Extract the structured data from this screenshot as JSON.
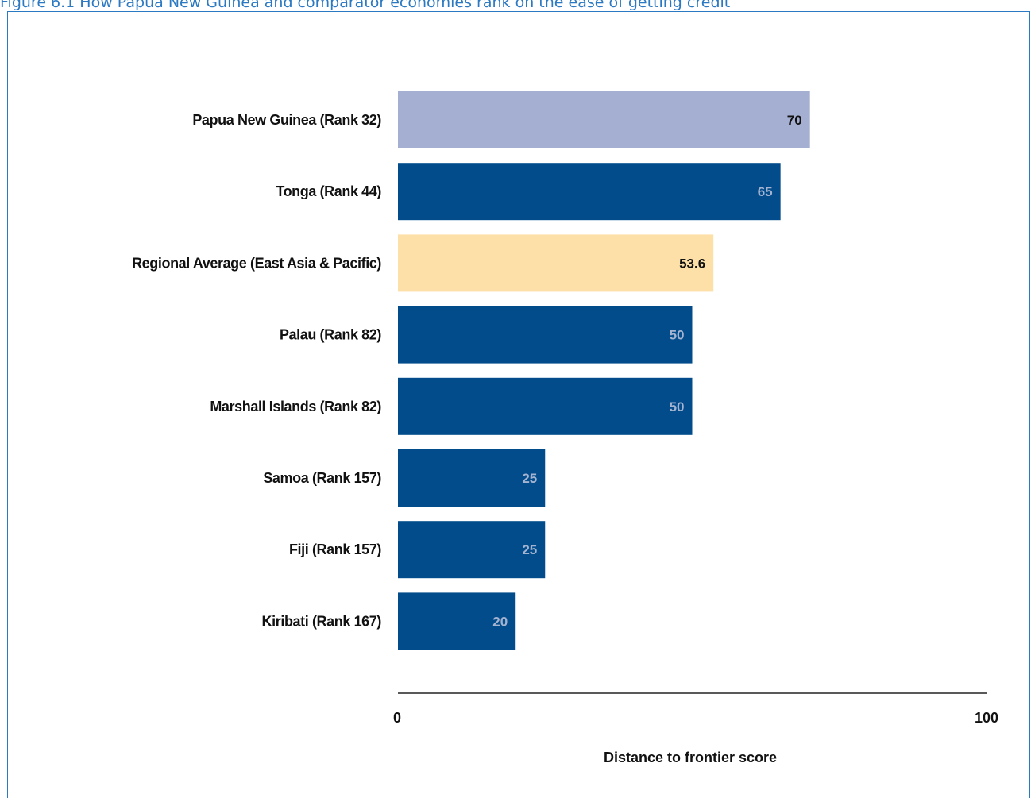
{
  "figure": {
    "title": "Figure 6.1 How Papua New Guinea and comparator economies rank on the ease of getting credit"
  },
  "colors": {
    "highlight": "#a5afd2",
    "regional": "#fde0a8",
    "default": "#034c8c",
    "label_on_dark": "#a4b3cf",
    "label_on_light": "#111111",
    "axis": "#222222",
    "frame": "#2b79c2"
  },
  "chart_data": {
    "type": "bar",
    "orientation": "horizontal",
    "categories": [
      "Papua New Guinea (Rank 32)",
      "Tonga (Rank 44)",
      "Regional Average (East Asia & Pacific)",
      "Palau (Rank 82)",
      "Marshall Islands (Rank 82)",
      "Samoa (Rank 157)",
      "Fiji (Rank 157)",
      "Kiribati (Rank 167)"
    ],
    "values": [
      70,
      65,
      53.6,
      50,
      50,
      25,
      25,
      20
    ],
    "value_labels": [
      "70",
      "65",
      "53.6",
      "50",
      "50",
      "25",
      "25",
      "20"
    ],
    "bar_styles": [
      "highlight",
      "default",
      "regional",
      "default",
      "default",
      "default",
      "default",
      "default"
    ],
    "xlabel": "Distance to frontier score",
    "xlim": [
      0,
      100
    ],
    "xticks": [
      "0",
      "100"
    ],
    "grid": false,
    "legend": "none"
  }
}
